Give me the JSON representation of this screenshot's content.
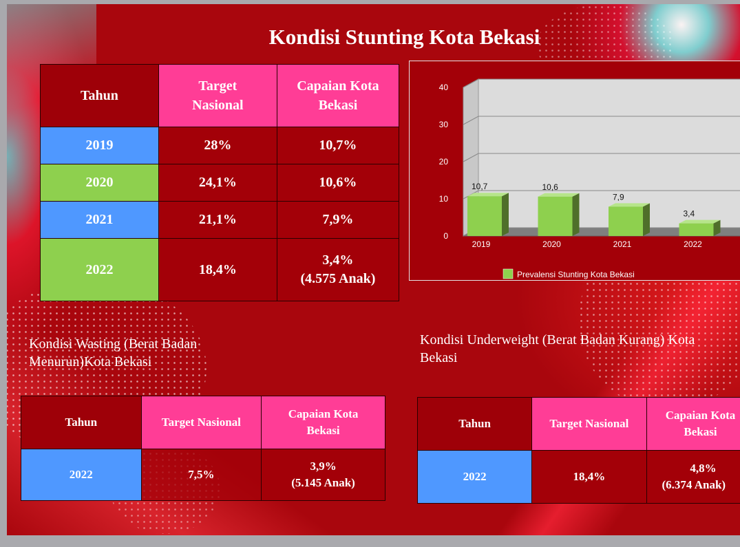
{
  "title": "Kondisi Stunting Kota Bekasi",
  "stunting_table": {
    "headers": [
      "Tahun",
      "Target Nasional",
      "Capaian Kota Bekasi"
    ],
    "rows": [
      {
        "tahun": "2019",
        "target": "28%",
        "capaian": "10,7%",
        "capaian_note": ""
      },
      {
        "tahun": "2020",
        "target": "24,1%",
        "capaian": "10,6%",
        "capaian_note": ""
      },
      {
        "tahun": "2021",
        "target": "21,1%",
        "capaian": "7,9%",
        "capaian_note": ""
      },
      {
        "tahun": "2022",
        "target": "18,4%",
        "capaian": "3,4%",
        "capaian_note": "(4.575 Anak)"
      }
    ]
  },
  "wasting": {
    "caption": "Kondisi Wasting (Berat Badan Menurun)Kota Bekasi",
    "headers": [
      "Tahun",
      "Target Nasional",
      "Capaian Kota Bekasi"
    ],
    "row": {
      "tahun": "2022",
      "target": "7,5%",
      "capaian": "3,9%",
      "capaian_note": "(5.145 Anak)"
    }
  },
  "underweight": {
    "caption": "Kondisi Underweight (Berat Badan Kurang) Kota Bekasi",
    "headers": [
      "Tahun",
      "Target Nasional",
      "Capaian Kota Bekasi"
    ],
    "row": {
      "tahun": "2022",
      "target": "18,4%",
      "capaian": "4,8%",
      "capaian_note": "(6.374 Anak)"
    }
  },
  "chart_data": {
    "type": "bar",
    "categories": [
      "2019",
      "2020",
      "2021",
      "2022"
    ],
    "series": [
      {
        "name": "Prevalensi Stunting Kota Bekasi",
        "values": [
          10.7,
          10.6,
          7.9,
          3.4
        ],
        "labels": [
          "10,7",
          "10,6",
          "7,9",
          "3,4"
        ]
      }
    ],
    "ylim": [
      0,
      40
    ],
    "yticks": [
      0,
      10,
      20,
      30,
      40
    ],
    "grid": true,
    "legend": "bottom",
    "colors": {
      "bar": "#8ed04e",
      "bar_side": "#4f6f2a",
      "plot_bg": "#dcdcdc"
    }
  }
}
